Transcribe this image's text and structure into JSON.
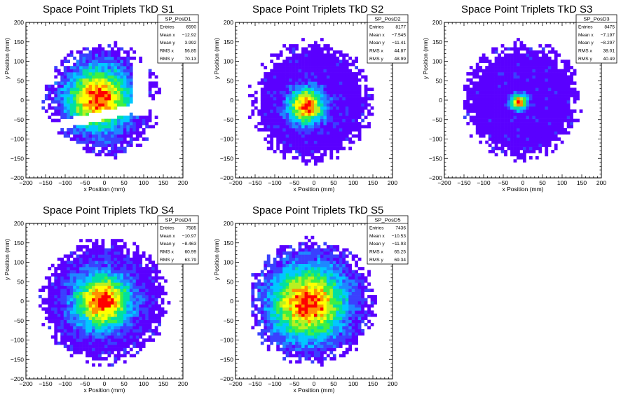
{
  "chart_data": [
    {
      "type": "heatmap",
      "id": "S1",
      "title": "Space Point Triplets TkD S1",
      "xlabel": "x Position (mm)",
      "ylabel": "y Position (mm)",
      "xlim": [
        -200,
        200
      ],
      "ylim": [
        -200,
        200
      ],
      "xticks": [
        -200,
        -150,
        -100,
        -50,
        0,
        50,
        100,
        150,
        200
      ],
      "yticks": [
        -200,
        -150,
        -100,
        -50,
        0,
        50,
        100,
        150,
        200
      ],
      "bin_width_mm": 8,
      "stats": {
        "name": "SP_PosD1",
        "rows": [
          {
            "label": "Entries",
            "value": "6590"
          },
          {
            "label": "Mean x",
            "value": "−12.92"
          },
          {
            "label": "Mean y",
            "value": "3.992"
          },
          {
            "label": "RMS x",
            "value": "56.85"
          },
          {
            "label": "RMS y",
            "value": "70.13"
          }
        ]
      },
      "distribution": {
        "shape": "disk with diagonal gap",
        "radius_mm": 145,
        "center_mm": [
          -15,
          5
        ],
        "peak_sigma_mm": 55,
        "gap": "diagonal band from (-140,-70) to (150,-5)"
      }
    },
    {
      "type": "heatmap",
      "id": "S2",
      "title": "Space Point Triplets TkD S2",
      "xlabel": "x Position (mm)",
      "ylabel": "y Position (mm)",
      "xlim": [
        -200,
        200
      ],
      "ylim": [
        -200,
        200
      ],
      "xticks": [
        -200,
        -150,
        -100,
        -50,
        0,
        50,
        100,
        150,
        200
      ],
      "yticks": [
        -200,
        -150,
        -100,
        -50,
        0,
        50,
        100,
        150,
        200
      ],
      "bin_width_mm": 8,
      "stats": {
        "name": "SP_PosD2",
        "rows": [
          {
            "label": "Entries",
            "value": "8177"
          },
          {
            "label": "Mean x",
            "value": "−7.545"
          },
          {
            "label": "Mean y",
            "value": "−11.41"
          },
          {
            "label": "RMS x",
            "value": "44.87"
          },
          {
            "label": "RMS y",
            "value": "48.99"
          }
        ]
      },
      "distribution": {
        "shape": "disk",
        "radius_mm": 155,
        "center_mm": [
          -20,
          -15
        ],
        "peak_sigma_mm": 32
      }
    },
    {
      "type": "heatmap",
      "id": "S3",
      "title": "Space Point Triplets TkD S3",
      "xlabel": "x Position (mm)",
      "ylabel": "y Position (mm)",
      "xlim": [
        -200,
        200
      ],
      "ylim": [
        -200,
        200
      ],
      "xticks": [
        -200,
        -150,
        -100,
        -50,
        0,
        50,
        100,
        150,
        200
      ],
      "yticks": [
        -200,
        -150,
        -100,
        -50,
        0,
        50,
        100,
        150,
        200
      ],
      "bin_width_mm": 8,
      "stats": {
        "name": "SP_PosD3",
        "rows": [
          {
            "label": "Entries",
            "value": "8475"
          },
          {
            "label": "Mean x",
            "value": "−7.197"
          },
          {
            "label": "Mean y",
            "value": "−8.297"
          },
          {
            "label": "RMS x",
            "value": "38.01"
          },
          {
            "label": "RMS y",
            "value": "40.49"
          }
        ]
      },
      "distribution": {
        "shape": "disk",
        "radius_mm": 150,
        "center_mm": [
          -10,
          -5
        ],
        "peak_sigma_mm": 14
      }
    },
    {
      "type": "heatmap",
      "id": "S4",
      "title": "Space Point Triplets TkD S4",
      "xlabel": "x Position (mm)",
      "ylabel": "y Position (mm)",
      "xlim": [
        -200,
        200
      ],
      "ylim": [
        -200,
        200
      ],
      "xticks": [
        -200,
        -150,
        -100,
        -50,
        0,
        50,
        100,
        150,
        200
      ],
      "yticks": [
        -200,
        -150,
        -100,
        -50,
        0,
        50,
        100,
        150,
        200
      ],
      "bin_width_mm": 8,
      "stats": {
        "name": "SP_PosD4",
        "rows": [
          {
            "label": "Entries",
            "value": "7585"
          },
          {
            "label": "Mean x",
            "value": "−10.97"
          },
          {
            "label": "Mean y",
            "value": "−8.463"
          },
          {
            "label": "RMS x",
            "value": "60.99"
          },
          {
            "label": "RMS y",
            "value": "63.79"
          }
        ]
      },
      "distribution": {
        "shape": "disk",
        "radius_mm": 160,
        "center_mm": [
          -5,
          0
        ],
        "peak_sigma_mm": 50
      }
    },
    {
      "type": "heatmap",
      "id": "S5",
      "title": "Space Point Triplets TkD S5",
      "xlabel": "x Position (mm)",
      "ylabel": "y Position (mm)",
      "xlim": [
        -200,
        200
      ],
      "ylim": [
        -200,
        200
      ],
      "xticks": [
        -200,
        -150,
        -100,
        -50,
        0,
        50,
        100,
        150,
        200
      ],
      "yticks": [
        -200,
        -150,
        -100,
        -50,
        0,
        50,
        100,
        150,
        200
      ],
      "bin_width_mm": 8,
      "stats": {
        "name": "SP_PosD5",
        "rows": [
          {
            "label": "Entries",
            "value": "7436"
          },
          {
            "label": "Mean x",
            "value": "−10.53"
          },
          {
            "label": "Mean y",
            "value": "−11.93"
          },
          {
            "label": "RMS x",
            "value": "65.25"
          },
          {
            "label": "RMS y",
            "value": "69.34"
          }
        ]
      },
      "distribution": {
        "shape": "disk",
        "radius_mm": 160,
        "center_mm": [
          -15,
          -5
        ],
        "peak_sigma_mm": 65
      }
    }
  ],
  "colors": {
    "palette": [
      "#5a00ff",
      "#3a40ff",
      "#1e88ff",
      "#00c8ff",
      "#00e0a0",
      "#40f040",
      "#b8f020",
      "#ffff00",
      "#ff9000",
      "#ff0000"
    ],
    "frame": "#000000",
    "background": "#ffffff"
  }
}
